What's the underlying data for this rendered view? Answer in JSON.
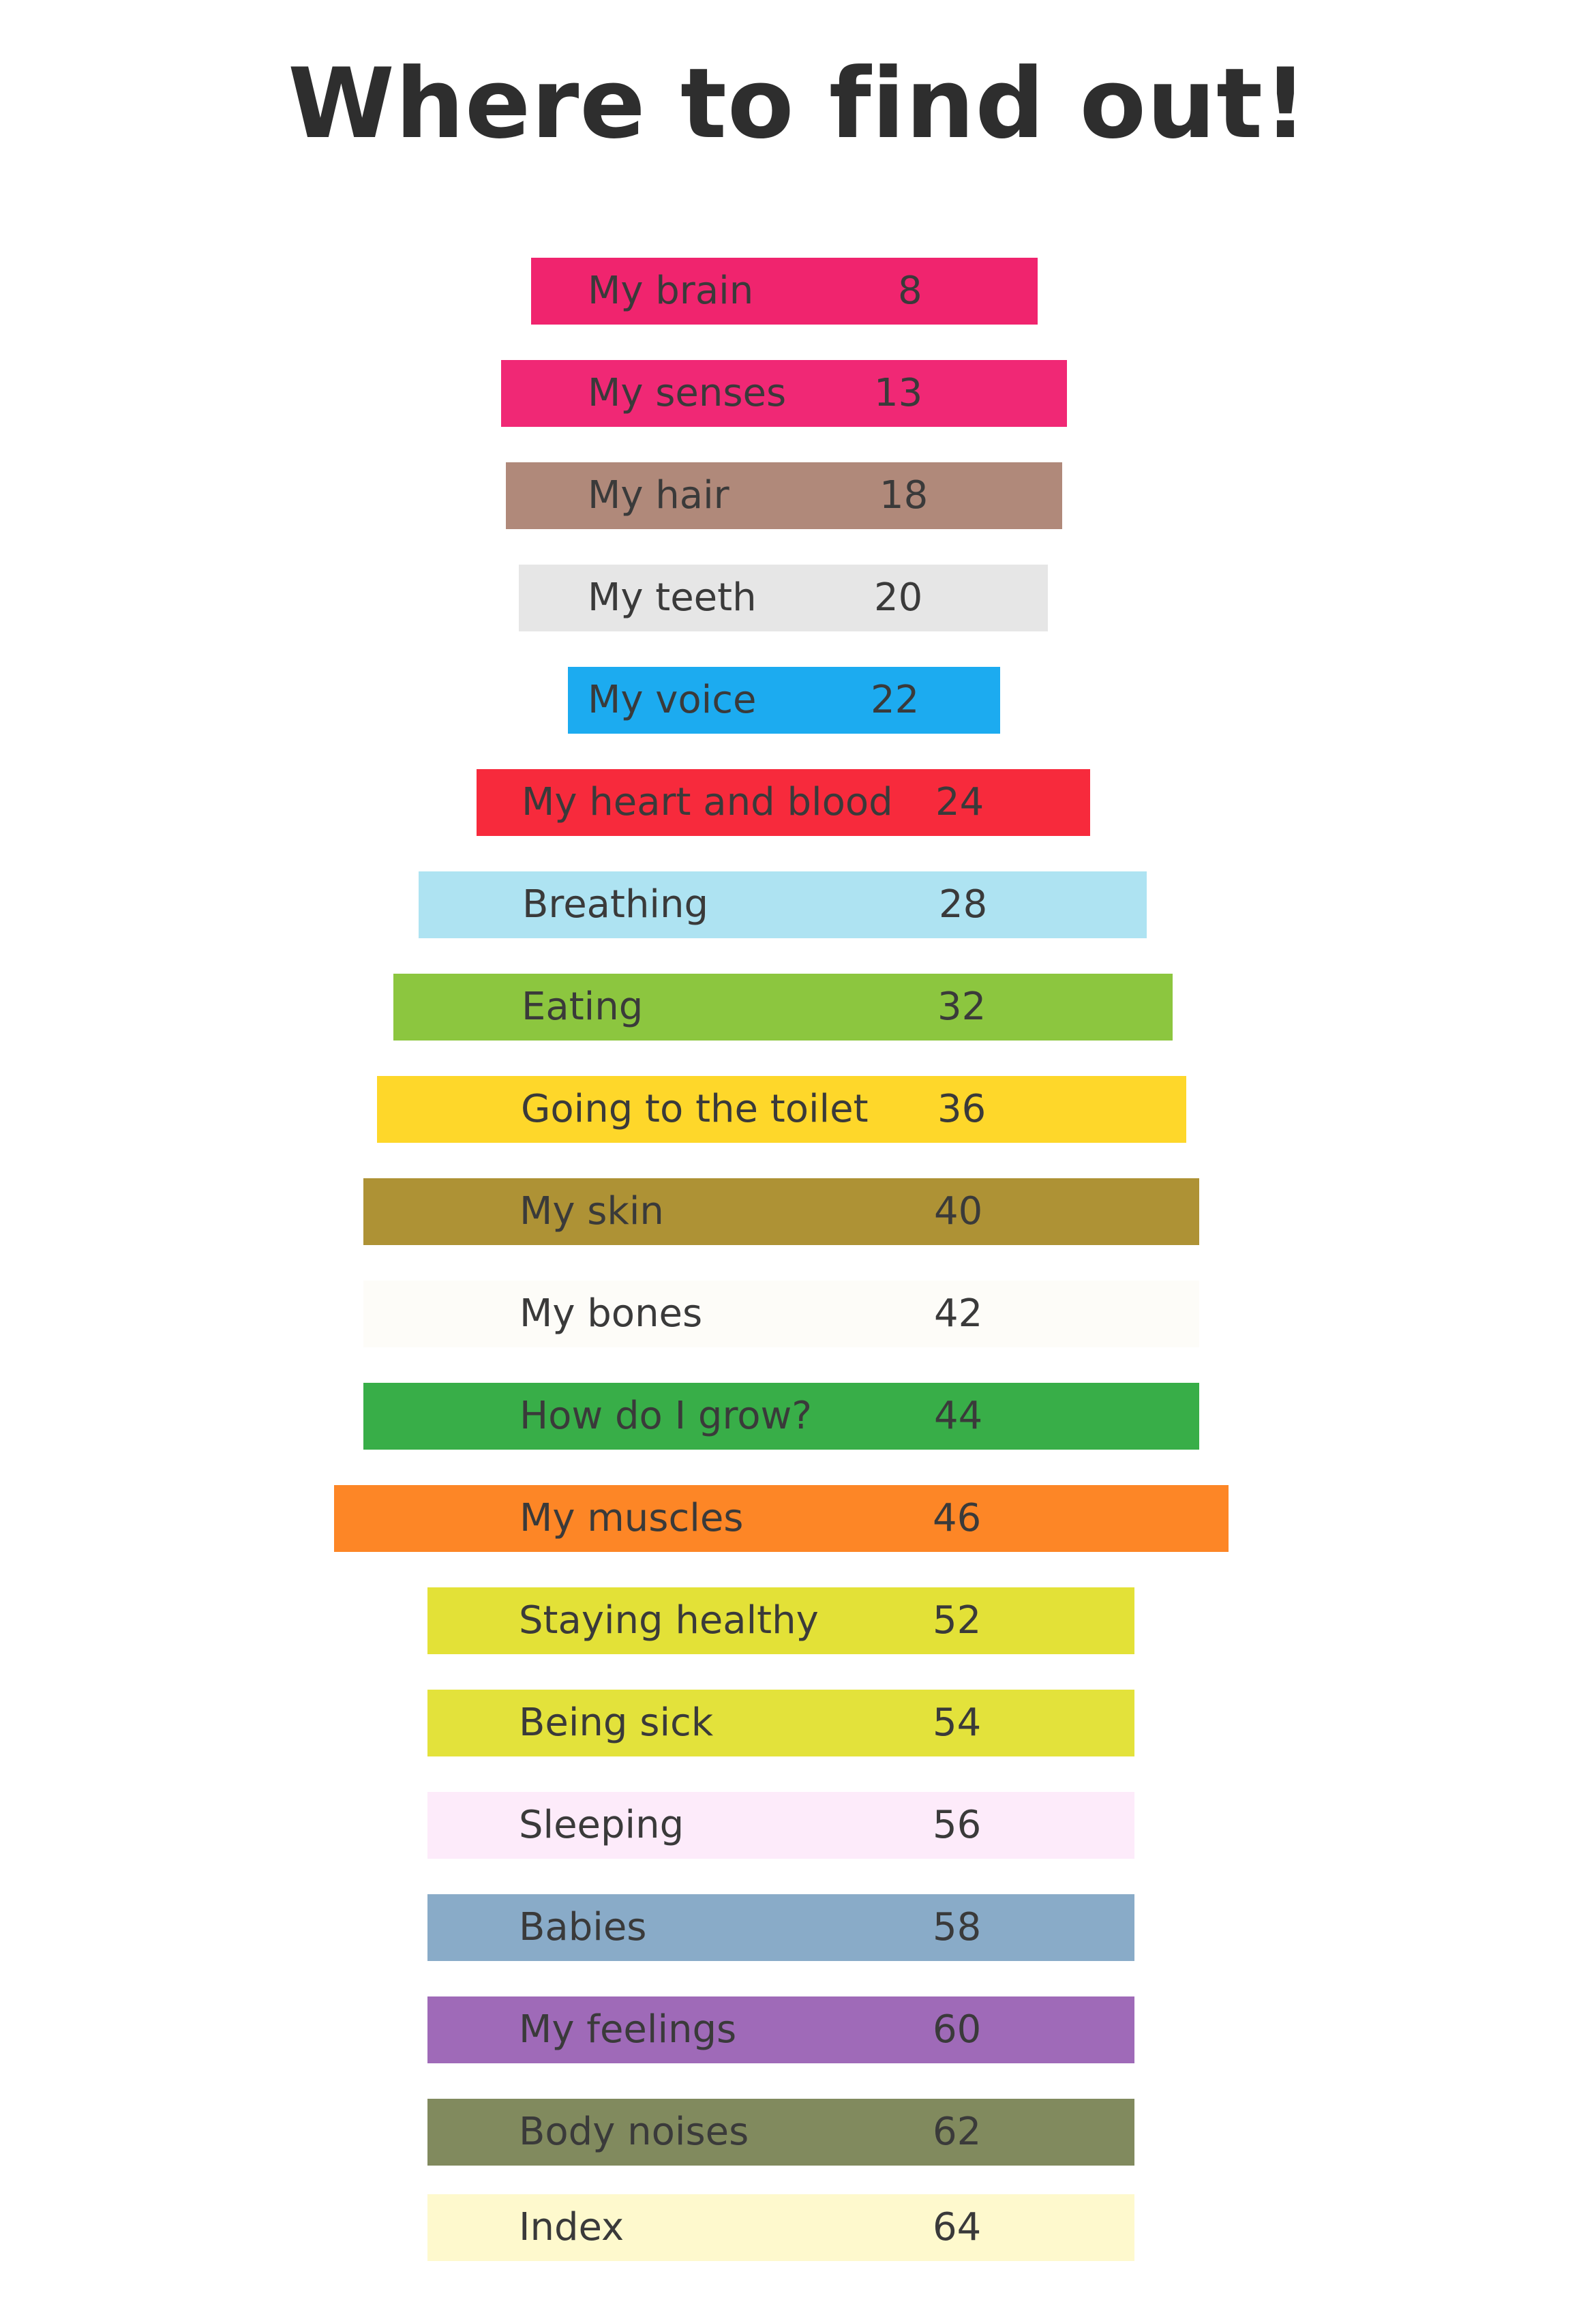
{
  "page": {
    "title": "Where to find out!"
  },
  "contents": [
    {
      "label": "My brain",
      "page": "8",
      "color": "#f0246e"
    },
    {
      "label": "My senses",
      "page": "13",
      "color": "#f02875"
    },
    {
      "label": "My hair",
      "page": "18",
      "color": "#b0897a"
    },
    {
      "label": "My teeth",
      "page": "20",
      "color": "#e6e6e6"
    },
    {
      "label": "My voice",
      "page": "22",
      "color": "#1cabf0"
    },
    {
      "label": "My heart and blood",
      "page": "24",
      "color": "#f72a3c"
    },
    {
      "label": "Breathing",
      "page": "28",
      "color": "#aee3f2"
    },
    {
      "label": "Eating",
      "page": "32",
      "color": "#8cc63f"
    },
    {
      "label": "Going to the toilet",
      "page": "36",
      "color": "#fed72a"
    },
    {
      "label": "My skin",
      "page": "40",
      "color": "#ae9235"
    },
    {
      "label": "My bones",
      "page": "42",
      "color": "#fdfcf8"
    },
    {
      "label": "How do I grow?",
      "page": "44",
      "color": "#38ae48"
    },
    {
      "label": "My muscles",
      "page": "46",
      "color": "#fd8626"
    },
    {
      "label": "Staying healthy",
      "page": "52",
      "color": "#e3e137"
    },
    {
      "label": "Being sick",
      "page": "54",
      "color": "#e3e23b"
    },
    {
      "label": "Sleeping",
      "page": "56",
      "color": "#fdebfa"
    },
    {
      "label": "Babies",
      "page": "58",
      "color": "#89abc8"
    },
    {
      "label": "My feelings",
      "page": "60",
      "color": "#9f6ab8"
    },
    {
      "label": "Body noises",
      "page": "62",
      "color": "#818a5e"
    },
    {
      "label": "Index",
      "page": "64",
      "color": "#fef9cd"
    }
  ]
}
